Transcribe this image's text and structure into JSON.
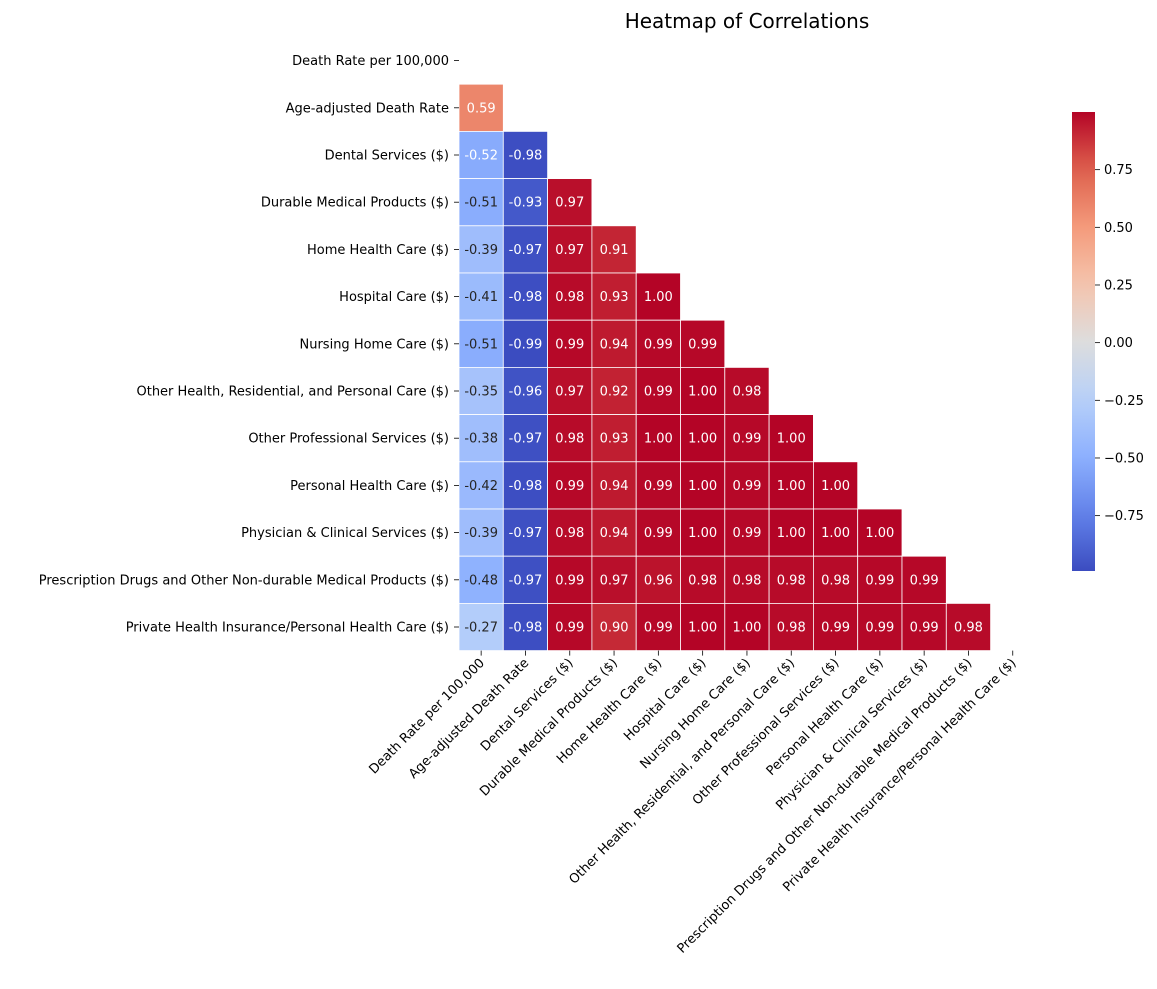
{
  "chart_data": {
    "type": "heatmap",
    "title": "Heatmap of Correlations",
    "xlabel": "",
    "ylabel": "",
    "colormap": "coolwarm",
    "labels": [
      "Death Rate per 100,000",
      "Age-adjusted Death Rate",
      "Dental Services ($)",
      "Durable Medical Products ($)",
      "Home Health Care ($)",
      "Hospital Care ($)",
      "Nursing Home Care ($)",
      "Other Health, Residential, and Personal Care ($)",
      "Other Professional Services ($)",
      "Personal Health Care ($)",
      "Physician & Clinical Services ($)",
      "Prescription Drugs and Other Non-durable Medical Products ($)",
      "Private Health Insurance/Personal Health Care ($)"
    ],
    "matrix_lower": [
      [],
      [
        0.59
      ],
      [
        -0.52,
        -0.98
      ],
      [
        -0.51,
        -0.93,
        0.97
      ],
      [
        -0.39,
        -0.97,
        0.97,
        0.91
      ],
      [
        -0.41,
        -0.98,
        0.98,
        0.93,
        1.0
      ],
      [
        -0.51,
        -0.99,
        0.99,
        0.94,
        0.99,
        0.99
      ],
      [
        -0.35,
        -0.96,
        0.97,
        0.92,
        0.99,
        1.0,
        0.98
      ],
      [
        -0.38,
        -0.97,
        0.98,
        0.93,
        1.0,
        1.0,
        0.99,
        1.0
      ],
      [
        -0.42,
        -0.98,
        0.99,
        0.94,
        0.99,
        1.0,
        0.99,
        1.0,
        1.0
      ],
      [
        -0.39,
        -0.97,
        0.98,
        0.94,
        0.99,
        1.0,
        0.99,
        1.0,
        1.0,
        1.0
      ],
      [
        -0.48,
        -0.97,
        0.99,
        0.97,
        0.96,
        0.98,
        0.98,
        0.98,
        0.98,
        0.99,
        0.99
      ],
      [
        -0.27,
        -0.98,
        0.99,
        0.9,
        0.99,
        1.0,
        1.0,
        0.98,
        0.99,
        0.99,
        0.99,
        0.98
      ]
    ],
    "annotation_format": "0.00",
    "colorbar": {
      "range": [
        -0.99,
        1.0
      ],
      "ticks": [
        "0.75",
        "0.50",
        "0.25",
        "0.00",
        "−0.25",
        "−0.50",
        "−0.75"
      ],
      "tick_values": [
        0.75,
        0.5,
        0.25,
        0.0,
        -0.25,
        -0.5,
        -0.75
      ]
    },
    "mask": "upper-triangle-including-diagonal",
    "legend": "colorbar right"
  }
}
